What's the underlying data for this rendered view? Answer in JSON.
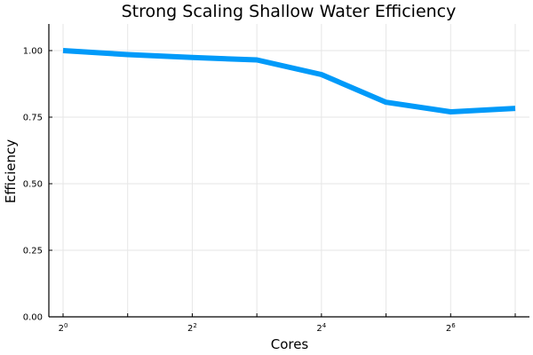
{
  "chart_data": {
    "type": "line",
    "title": "Strong Scaling Shallow Water Efficiency",
    "xlabel": "Cores",
    "ylabel": "Efficiency",
    "x_scale": "log2",
    "x": [
      1,
      2,
      4,
      8,
      16,
      32,
      64,
      128
    ],
    "xlim": [
      1,
      128
    ],
    "xticks": [
      {
        "value": 1,
        "base": "2",
        "exp": "0"
      },
      {
        "value": 4,
        "base": "2",
        "exp": "2"
      },
      {
        "value": 16,
        "base": "2",
        "exp": "4"
      },
      {
        "value": 64,
        "base": "2",
        "exp": "6"
      }
    ],
    "ylim": [
      0,
      1.1
    ],
    "yticks": [
      "0.00",
      "0.25",
      "0.50",
      "0.75",
      "1.00"
    ],
    "grid": true,
    "legend": "none",
    "series": [
      {
        "values": [
          1.0,
          0.985,
          0.974,
          0.965,
          0.91,
          0.806,
          0.77,
          0.783
        ],
        "color": "#009af9"
      }
    ]
  }
}
